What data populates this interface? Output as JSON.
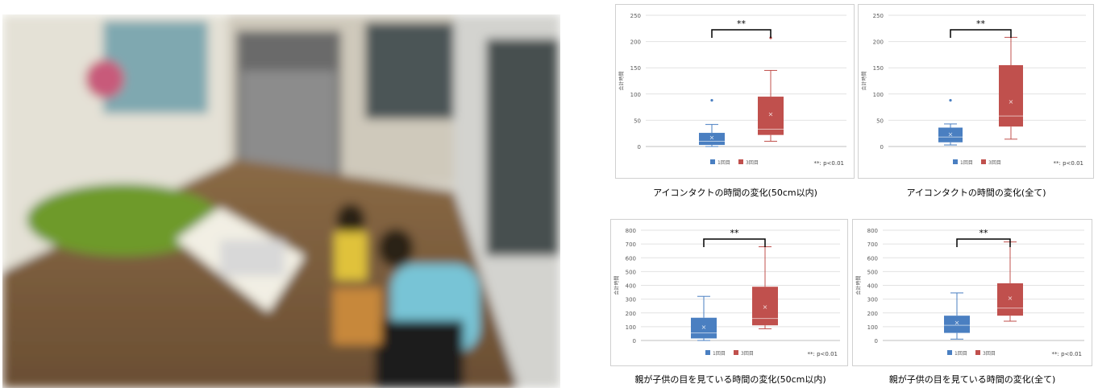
{
  "photo": {
    "icon": "blurred-playroom-photo"
  },
  "panels": [
    {
      "caption": "アイコンタクトの時間の変化(50cm以内)",
      "chart_data": {
        "type": "box",
        "ylabel": "合計時間",
        "ylim": [
          0,
          250
        ],
        "yticks": [
          0,
          50,
          100,
          150,
          200,
          250
        ],
        "significance": "**",
        "note": "**: p<0.01",
        "series": [
          {
            "name": "1回目",
            "color": "#4a7fc1",
            "min": 0,
            "q1": 3,
            "median": 10,
            "q3": 26,
            "max": 42,
            "mean": 18,
            "outliers": [
              88
            ]
          },
          {
            "name": "3回目",
            "color": "#c0504d",
            "min": 10,
            "q1": 22,
            "median": 33,
            "q3": 95,
            "max": 145,
            "mean": 62,
            "outliers": [
              207
            ]
          }
        ]
      }
    },
    {
      "caption": "アイコンタクトの時間の変化(全て)",
      "chart_data": {
        "type": "box",
        "ylabel": "合計時間",
        "ylim": [
          0,
          250
        ],
        "yticks": [
          0,
          50,
          100,
          150,
          200,
          250
        ],
        "significance": "**",
        "note": "**: p<0.01",
        "series": [
          {
            "name": "1回目",
            "color": "#4a7fc1",
            "min": 3,
            "q1": 8,
            "median": 18,
            "q3": 36,
            "max": 43,
            "mean": 24,
            "outliers": [
              88
            ]
          },
          {
            "name": "3回目",
            "color": "#c0504d",
            "min": 14,
            "q1": 38,
            "median": 58,
            "q3": 155,
            "max": 208,
            "mean": 86,
            "outliers": []
          }
        ]
      }
    },
    {
      "caption": "親が子供の目を見ている時間の変化(50cm以内)",
      "chart_data": {
        "type": "box",
        "ylabel": "合計時間",
        "ylim": [
          0,
          800
        ],
        "yticks": [
          0,
          100,
          200,
          300,
          400,
          500,
          600,
          700,
          800
        ],
        "significance": "**",
        "note": "**: p<0.01",
        "series": [
          {
            "name": "1回目",
            "color": "#4a7fc1",
            "min": 0,
            "q1": 15,
            "median": 55,
            "q3": 165,
            "max": 320,
            "mean": 100,
            "outliers": []
          },
          {
            "name": "3回目",
            "color": "#c0504d",
            "min": 85,
            "q1": 110,
            "median": 160,
            "q3": 390,
            "max": 680,
            "mean": 245,
            "outliers": []
          }
        ]
      }
    },
    {
      "caption": "親が子供の目を見ている時間の変化(全て)",
      "chart_data": {
        "type": "box",
        "ylabel": "合計時間",
        "ylim": [
          0,
          800
        ],
        "yticks": [
          0,
          100,
          200,
          300,
          400,
          500,
          600,
          700,
          800
        ],
        "significance": "**",
        "note": "**: p<0.01",
        "series": [
          {
            "name": "1回目",
            "color": "#4a7fc1",
            "min": 10,
            "q1": 55,
            "median": 110,
            "q3": 180,
            "max": 345,
            "mean": 130,
            "outliers": []
          },
          {
            "name": "3回目",
            "color": "#c0504d",
            "min": 140,
            "q1": 180,
            "median": 235,
            "q3": 415,
            "max": 715,
            "mean": 310,
            "outliers": []
          }
        ]
      }
    }
  ]
}
